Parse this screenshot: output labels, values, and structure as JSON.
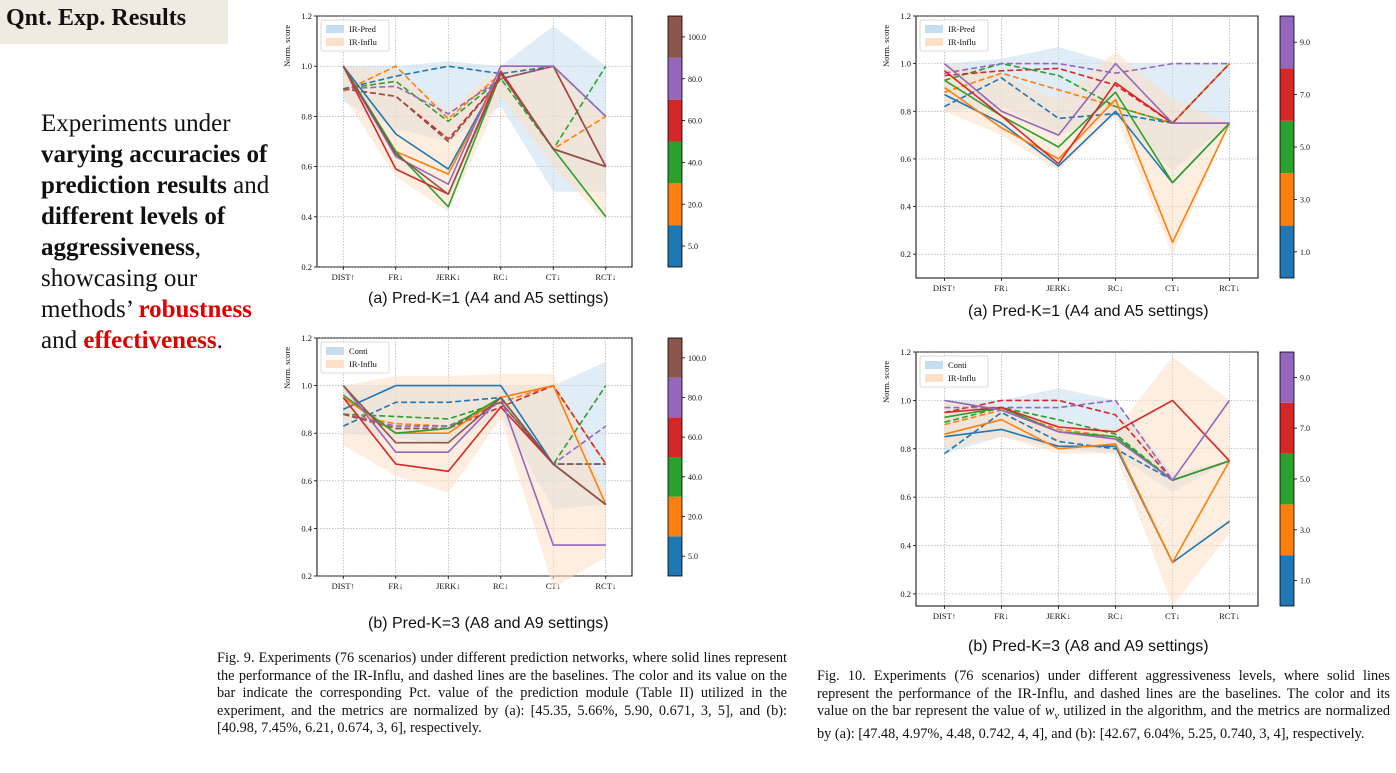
{
  "slide": {
    "title": "Qnt. Exp. Results",
    "body": [
      {
        "text": "Experiments under ",
        "style": "normal"
      },
      {
        "text": "varying accuracies of prediction results",
        "style": "bold"
      },
      {
        "text": " and ",
        "style": "normal"
      },
      {
        "text": "different levels of aggressiveness",
        "style": "bold"
      },
      {
        "text": ", showcasing our methods’ ",
        "style": "normal"
      },
      {
        "text": "robustness",
        "style": "red"
      },
      {
        "text": " and ",
        "style": "normal"
      },
      {
        "text": "effectiveness",
        "style": "red"
      },
      {
        "text": ".",
        "style": "normal"
      }
    ]
  },
  "colors": {
    "blue": "#1f77b4",
    "orange": "#ff7f0e",
    "green": "#2ca02c",
    "red": "#d62728",
    "purple": "#9467bd",
    "brown": "#8c564b",
    "pred_band": "#c6dcef",
    "influ_band": "#fde0c5"
  },
  "fig9": {
    "caption": "Fig. 9.  Experiments (76 scenarios) under different prediction networks, where solid lines represent the performance of the IR-Influ, and dashed lines are the baselines. The color and its value on the bar indicate the corresponding Pct. value of the prediction module (Table II) utilized in the experiment, and the metrics are normalized by (a): [45.35, 5.66%, 5.90, 0.671, 3, 5], and (b): [40.98, 7.45%, 6.21, 0.674, 3, 6], respectively."
  },
  "fig10": {
    "caption_parts": [
      "Fig. 10.  Experiments (76 scenarios) under different aggressiveness levels, where solid lines represent the performance of the IR-Influ, and dashed lines are the baselines. The color and its value on the bar represent the value of ",
      "w",
      "v",
      " utilized in the algorithm, and the metrics are normalized by (a): [47.48, 4.97%, 4.48, 0.742, 4, 4], and (b): [42.67, 6.04%, 5.25, 0.740, 3, 4], respectively."
    ]
  },
  "chart_data": [
    {
      "id": "fig9a",
      "type": "line",
      "subcaption": "(a) Pred-K=1 (A4 and A5 settings)",
      "ylabel": "Norm. score",
      "ylim": [
        0.2,
        1.2
      ],
      "yticks": [
        "0.2",
        "0.4",
        "0.6",
        "0.8",
        "1.0",
        "1.2"
      ],
      "categories": [
        "DIST↑",
        "FR↓",
        "JERK↓",
        "RC↓",
        "CT↓",
        "RCT↓"
      ],
      "legend": [
        "IR-Pred",
        "IR-Influ"
      ],
      "colorbar": {
        "ticks": [
          "5.0",
          "20.0",
          "40.0",
          "60.0",
          "80.0",
          "100.0"
        ],
        "colors": [
          "blue",
          "orange",
          "green",
          "red",
          "purple",
          "brown"
        ],
        "tick_positions": [
          0.5,
          1.5,
          2.5,
          3.5,
          4.5,
          5.5
        ]
      },
      "band_baseline": {
        "upper": [
          1.0,
          1.0,
          1.02,
          1.0,
          1.16,
          1.0
        ],
        "lower": [
          0.86,
          0.75,
          0.7,
          0.84,
          0.5,
          0.5
        ]
      },
      "band_ours": {
        "upper": [
          1.0,
          0.98,
          0.82,
          1.0,
          1.0,
          0.8
        ],
        "lower": [
          0.88,
          0.56,
          0.42,
          0.88,
          0.6,
          0.38
        ]
      },
      "series": [
        {
          "name": "5.0",
          "color": "blue",
          "style": "solid",
          "values": [
            1.0,
            0.73,
            0.59,
            0.97,
            0.67,
            0.6
          ]
        },
        {
          "name": "5.0",
          "color": "blue",
          "style": "dashed",
          "values": [
            0.91,
            0.96,
            1.0,
            0.97,
            1.0,
            0.6
          ]
        },
        {
          "name": "20.0",
          "color": "orange",
          "style": "solid",
          "values": [
            1.0,
            0.66,
            0.57,
            0.97,
            0.67,
            0.6
          ]
        },
        {
          "name": "20.0",
          "color": "orange",
          "style": "dashed",
          "values": [
            0.9,
            1.0,
            0.79,
            0.97,
            0.67,
            0.8
          ]
        },
        {
          "name": "40.0",
          "color": "green",
          "style": "solid",
          "values": [
            1.0,
            0.66,
            0.44,
            0.97,
            0.67,
            0.4
          ]
        },
        {
          "name": "40.0",
          "color": "green",
          "style": "dashed",
          "values": [
            0.91,
            0.94,
            0.78,
            0.95,
            0.67,
            1.0
          ]
        },
        {
          "name": "60.0",
          "color": "red",
          "style": "solid",
          "values": [
            1.0,
            0.59,
            0.49,
            0.98,
            0.67,
            0.6
          ]
        },
        {
          "name": "60.0",
          "color": "red",
          "style": "dashed",
          "values": [
            0.91,
            0.88,
            0.71,
            0.95,
            1.0,
            0.6
          ]
        },
        {
          "name": "80.0",
          "color": "purple",
          "style": "solid",
          "values": [
            1.0,
            0.64,
            0.53,
            1.0,
            1.0,
            0.8
          ]
        },
        {
          "name": "80.0",
          "color": "purple",
          "style": "dashed",
          "values": [
            0.91,
            0.92,
            0.81,
            0.95,
            1.0,
            0.8
          ]
        },
        {
          "name": "100.0",
          "color": "brown",
          "style": "solid",
          "values": [
            1.0,
            0.65,
            0.49,
            0.97,
            0.67,
            0.6
          ]
        },
        {
          "name": "100.0",
          "color": "brown",
          "style": "dashed",
          "values": [
            0.91,
            0.88,
            0.7,
            0.95,
            1.0,
            0.6
          ]
        }
      ]
    },
    {
      "id": "fig9b",
      "type": "line",
      "subcaption": "(b) Pred-K=3 (A8 and A9 settings)",
      "ylabel": "Norm. score",
      "ylim": [
        0.2,
        1.2
      ],
      "yticks": [
        "0.2",
        "0.4",
        "0.6",
        "0.8",
        "1.0",
        "1.2"
      ],
      "categories": [
        "DIST↑",
        "FR↓",
        "JERK↓",
        "RC↓",
        "CT↓",
        "RCT↓"
      ],
      "legend": [
        "Conti",
        "IR-Influ"
      ],
      "colorbar": {
        "ticks": [
          "5.0",
          "20.0",
          "40.0",
          "60.0",
          "80.0",
          "100.0"
        ],
        "colors": [
          "blue",
          "orange",
          "green",
          "red",
          "purple",
          "brown"
        ],
        "tick_positions": [
          0.5,
          1.5,
          2.5,
          3.5,
          4.5,
          5.5
        ]
      },
      "band_baseline": {
        "upper": [
          1.0,
          1.0,
          1.0,
          1.0,
          1.0,
          1.1
        ],
        "lower": [
          0.8,
          0.78,
          0.75,
          0.88,
          0.48,
          0.5
        ]
      },
      "band_ours": {
        "upper": [
          1.0,
          1.04,
          1.04,
          1.05,
          1.05,
          0.55
        ],
        "lower": [
          0.75,
          0.62,
          0.55,
          0.86,
          0.15,
          0.28
        ]
      },
      "series": [
        {
          "name": "5.0",
          "color": "blue",
          "style": "solid",
          "values": [
            0.9,
            1.0,
            1.0,
            1.0,
            0.67,
            0.5
          ]
        },
        {
          "name": "5.0",
          "color": "blue",
          "style": "dashed",
          "values": [
            0.83,
            0.93,
            0.93,
            0.95,
            0.67,
            0.67
          ]
        },
        {
          "name": "20.0",
          "color": "orange",
          "style": "solid",
          "values": [
            0.95,
            0.8,
            0.8,
            0.95,
            1.0,
            0.5
          ]
        },
        {
          "name": "20.0",
          "color": "orange",
          "style": "dashed",
          "values": [
            0.88,
            0.84,
            0.83,
            0.93,
            1.0,
            0.67
          ]
        },
        {
          "name": "40.0",
          "color": "green",
          "style": "solid",
          "values": [
            0.96,
            0.8,
            0.82,
            0.95,
            0.67,
            0.5
          ]
        },
        {
          "name": "40.0",
          "color": "green",
          "style": "dashed",
          "values": [
            0.88,
            0.87,
            0.86,
            0.93,
            0.67,
            1.0
          ]
        },
        {
          "name": "60.0",
          "color": "red",
          "style": "solid",
          "values": [
            0.95,
            0.67,
            0.64,
            0.91,
            0.67,
            0.5
          ]
        },
        {
          "name": "60.0",
          "color": "red",
          "style": "dashed",
          "values": [
            0.88,
            0.82,
            0.82,
            0.91,
            1.0,
            0.67
          ]
        },
        {
          "name": "80.0",
          "color": "purple",
          "style": "solid",
          "values": [
            1.0,
            0.72,
            0.72,
            0.95,
            0.33,
            0.33
          ]
        },
        {
          "name": "80.0",
          "color": "purple",
          "style": "dashed",
          "values": [
            0.88,
            0.83,
            0.83,
            0.93,
            0.67,
            0.83
          ]
        },
        {
          "name": "100.0",
          "color": "brown",
          "style": "solid",
          "values": [
            1.0,
            0.76,
            0.76,
            0.95,
            0.67,
            0.5
          ]
        },
        {
          "name": "100.0",
          "color": "brown",
          "style": "dashed",
          "values": [
            0.88,
            0.82,
            0.82,
            0.93,
            0.67,
            0.67
          ]
        }
      ]
    },
    {
      "id": "fig10a",
      "type": "line",
      "subcaption": "(a) Pred-K=1 (A4 and A5 settings)",
      "ylabel": "Norm. score",
      "ylim": [
        0.1,
        1.2
      ],
      "yticks": [
        "0.2",
        "0.4",
        "0.6",
        "0.8",
        "1.0",
        "1.2"
      ],
      "ytick_values": [
        0.2,
        0.4,
        0.6,
        0.8,
        1.0,
        1.2
      ],
      "categories": [
        "DIST↑",
        "FR↓",
        "JERK↓",
        "RC↓",
        "CT↓",
        "RCT↓"
      ],
      "legend": [
        "IR-Pred",
        "IR-Influ"
      ],
      "colorbar": {
        "ticks": [
          "1.0",
          "3.0",
          "5.0",
          "7.0",
          "9.0"
        ],
        "colors": [
          "blue",
          "orange",
          "green",
          "red",
          "purple"
        ],
        "tick_positions": [
          0.5,
          1.5,
          2.5,
          3.5,
          4.5
        ]
      },
      "band_baseline": {
        "upper": [
          1.0,
          1.02,
          1.07,
          1.0,
          1.0,
          1.0
        ],
        "lower": [
          0.8,
          0.82,
          0.7,
          0.78,
          0.55,
          0.75
        ]
      },
      "band_ours": {
        "upper": [
          1.0,
          0.95,
          0.85,
          1.05,
          0.85,
          0.75
        ],
        "lower": [
          0.8,
          0.7,
          0.55,
          0.78,
          0.2,
          0.75
        ]
      },
      "series": [
        {
          "name": "1.0",
          "color": "blue",
          "style": "solid",
          "values": [
            0.87,
            0.75,
            0.57,
            0.8,
            0.5,
            0.75
          ]
        },
        {
          "name": "1.0",
          "color": "blue",
          "style": "dashed",
          "values": [
            0.82,
            0.94,
            0.77,
            0.79,
            0.75,
            1.0
          ]
        },
        {
          "name": "3.0",
          "color": "orange",
          "style": "solid",
          "values": [
            0.9,
            0.73,
            0.6,
            0.85,
            0.25,
            0.75
          ]
        },
        {
          "name": "3.0",
          "color": "orange",
          "style": "dashed",
          "values": [
            0.88,
            0.96,
            0.89,
            0.82,
            0.75,
            1.0
          ]
        },
        {
          "name": "5.0",
          "color": "green",
          "style": "solid",
          "values": [
            0.93,
            0.78,
            0.65,
            0.88,
            0.5,
            0.75
          ]
        },
        {
          "name": "5.0",
          "color": "green",
          "style": "dashed",
          "values": [
            0.93,
            1.0,
            0.95,
            0.82,
            0.75,
            1.0
          ]
        },
        {
          "name": "7.0",
          "color": "red",
          "style": "solid",
          "values": [
            0.97,
            0.78,
            0.58,
            0.92,
            0.75,
            0.75
          ]
        },
        {
          "name": "7.0",
          "color": "red",
          "style": "dashed",
          "values": [
            0.95,
            0.97,
            0.98,
            0.91,
            0.75,
            1.0
          ]
        },
        {
          "name": "9.0",
          "color": "purple",
          "style": "solid",
          "values": [
            1.0,
            0.8,
            0.7,
            1.0,
            0.75,
            0.75
          ]
        },
        {
          "name": "9.0",
          "color": "purple",
          "style": "dashed",
          "values": [
            0.96,
            1.0,
            1.0,
            0.96,
            1.0,
            1.0
          ]
        }
      ]
    },
    {
      "id": "fig10b",
      "type": "line",
      "subcaption": "(b) Pred-K=3 (A8 and A9 settings)",
      "ylabel": "Norm. score",
      "ylim": [
        0.15,
        1.2
      ],
      "yticks": [
        "0.2",
        "0.4",
        "0.6",
        "0.8",
        "1.0",
        "1.2"
      ],
      "ytick_values": [
        0.2,
        0.4,
        0.6,
        0.8,
        1.0,
        1.2
      ],
      "categories": [
        "DIST↑",
        "FR↓",
        "JERK↓",
        "RC↓",
        "CT↓",
        "RCT↓"
      ],
      "legend": [
        "Conti",
        "IR-Influ"
      ],
      "colorbar": {
        "ticks": [
          "1.0",
          "3.0",
          "5.0",
          "7.0",
          "9.0"
        ],
        "colors": [
          "blue",
          "orange",
          "green",
          "red",
          "purple"
        ],
        "tick_positions": [
          0.5,
          1.5,
          2.5,
          3.5,
          4.5
        ]
      },
      "band_baseline": {
        "upper": [
          1.0,
          1.0,
          1.05,
          1.0,
          0.7,
          0.75
        ],
        "lower": [
          0.78,
          0.85,
          0.8,
          0.78,
          0.62,
          0.75
        ]
      },
      "band_ours": {
        "upper": [
          1.0,
          0.98,
          0.9,
          0.88,
          1.18,
          1.0
        ],
        "lower": [
          0.8,
          0.85,
          0.78,
          0.78,
          0.15,
          0.45
        ]
      },
      "series": [
        {
          "name": "1.0",
          "color": "blue",
          "style": "solid",
          "values": [
            0.85,
            0.88,
            0.81,
            0.81,
            0.33,
            0.5
          ]
        },
        {
          "name": "1.0",
          "color": "blue",
          "style": "dashed",
          "values": [
            0.78,
            0.95,
            0.83,
            0.8,
            0.67,
            0.75
          ]
        },
        {
          "name": "3.0",
          "color": "orange",
          "style": "solid",
          "values": [
            0.86,
            0.92,
            0.8,
            0.82,
            0.33,
            0.75
          ]
        },
        {
          "name": "3.0",
          "color": "orange",
          "style": "dashed",
          "values": [
            0.9,
            0.96,
            0.88,
            0.85,
            0.67,
            0.75
          ]
        },
        {
          "name": "5.0",
          "color": "green",
          "style": "solid",
          "values": [
            0.93,
            0.97,
            0.87,
            0.85,
            0.67,
            0.75
          ]
        },
        {
          "name": "5.0",
          "color": "green",
          "style": "dashed",
          "values": [
            0.91,
            0.97,
            0.92,
            0.86,
            0.67,
            0.75
          ]
        },
        {
          "name": "7.0",
          "color": "red",
          "style": "solid",
          "values": [
            0.95,
            0.97,
            0.89,
            0.87,
            1.0,
            0.75
          ]
        },
        {
          "name": "7.0",
          "color": "red",
          "style": "dashed",
          "values": [
            0.95,
            1.0,
            1.0,
            0.94,
            0.67,
            0.75
          ]
        },
        {
          "name": "9.0",
          "color": "purple",
          "style": "solid",
          "values": [
            1.0,
            0.96,
            0.87,
            0.84,
            0.67,
            1.0
          ]
        },
        {
          "name": "9.0",
          "color": "purple",
          "style": "dashed",
          "values": [
            0.97,
            0.97,
            0.97,
            1.0,
            0.67,
            0.75
          ]
        }
      ]
    }
  ]
}
